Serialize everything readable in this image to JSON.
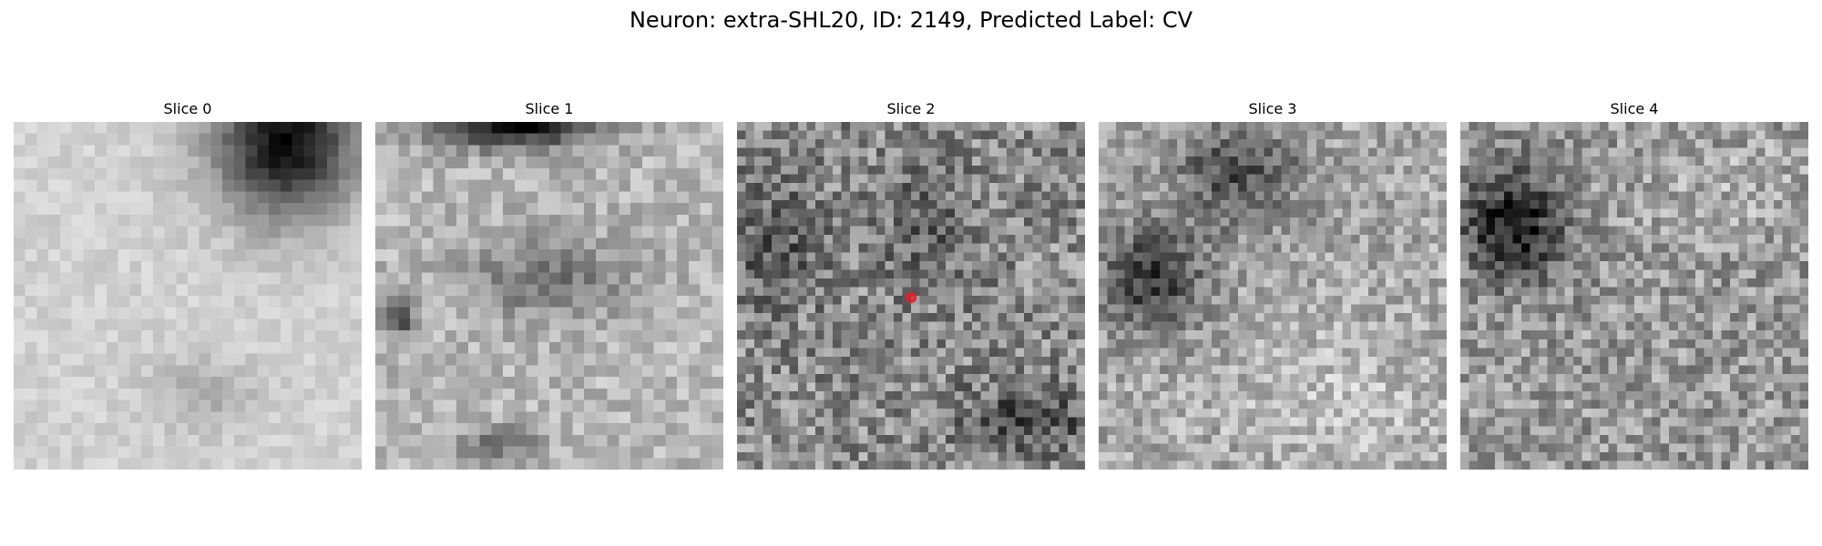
{
  "figure": {
    "title": "Neuron: extra-SHL20, ID: 2149, Predicted Label: CV"
  },
  "panels": [
    {
      "title": "Slice 0",
      "pattern": "smooth-light-dark-top-right"
    },
    {
      "title": "Slice 1",
      "pattern": "blotchy-dark-top-band"
    },
    {
      "title": "Slice 2",
      "pattern": "grainy-mid-gray",
      "has_marker": true,
      "marker_color": "#e61e28"
    },
    {
      "title": "Slice 3",
      "pattern": "grainy-dark-upper-left"
    },
    {
      "title": "Slice 4",
      "pattern": "grainy-dark-left-blob"
    }
  ]
}
